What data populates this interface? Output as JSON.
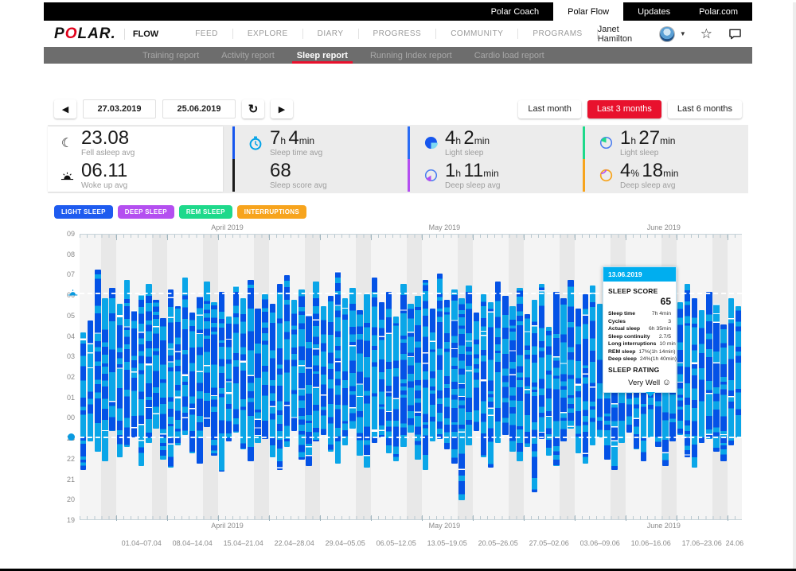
{
  "topbar": {
    "tabs": [
      {
        "label": "Polar Coach",
        "active": false
      },
      {
        "label": "Polar Flow",
        "active": true
      },
      {
        "label": "Updates",
        "active": false
      },
      {
        "label": "Polar.com",
        "active": false
      }
    ]
  },
  "nav": {
    "brand_p": "P",
    "brand_o": "O",
    "brand_lar": "LAR",
    "brand_dot": ".",
    "product": "FLOW",
    "items": [
      "FEED",
      "EXPLORE",
      "DIARY",
      "PROGRESS",
      "COMMUNITY",
      "PROGRAMS"
    ],
    "user": "Janet Hamilton"
  },
  "subnav": {
    "items": [
      {
        "label": "Training report",
        "active": false
      },
      {
        "label": "Activity report",
        "active": false
      },
      {
        "label": "Sleep report",
        "active": true
      },
      {
        "label": "Running Index report",
        "active": false
      },
      {
        "label": "Cardio load report",
        "active": false
      }
    ]
  },
  "controls": {
    "date_from": "27.03.2019",
    "date_to": "25.06.2019",
    "prev": "◀",
    "next": "▶",
    "refresh": "↻",
    "ranges": [
      {
        "label": "Last month",
        "active": false
      },
      {
        "label": "Last 3 months",
        "active": true
      },
      {
        "label": "Last 6 months",
        "active": false
      }
    ]
  },
  "stats": [
    {
      "icon": "moon-icon",
      "value": "23.08",
      "label": "Fell asleep avg",
      "divider": null
    },
    {
      "icon": "sunrise-icon",
      "value": "06.11",
      "label": "Woke up avg",
      "divider": null
    },
    {
      "icon": "stopwatch-icon",
      "value": "7h 4min",
      "label": "Sleep time avg",
      "divider": "#1656ee"
    },
    {
      "icon": null,
      "value": "68",
      "label": "Sleep score avg",
      "divider": "#1a1a1a"
    },
    {
      "icon": "pie-blue-icon",
      "value": "4h 2min",
      "label": "Light sleep",
      "divider": "#2a6cf5"
    },
    {
      "icon": "pie-purple-icon",
      "value": "1h 11min",
      "label": "Deep sleep avg",
      "divider": "#b44ef0"
    },
    {
      "icon": "pie-green-icon",
      "value": "1h 27min",
      "label": "Light sleep",
      "divider": "#1ed98b"
    },
    {
      "icon": "pie-orange-icon",
      "value": "4% 18min",
      "label": "Deep sleep avg",
      "divider": "#f7a41d"
    }
  ],
  "legend": [
    {
      "label": "LIGHT SLEEP",
      "color": "#1e5bef"
    },
    {
      "label": "DEEP SLEEP",
      "color": "#b44ff0"
    },
    {
      "label": "REM SLEEP",
      "color": "#1ed98b"
    },
    {
      "label": "INTERRUPTIONS",
      "color": "#f7a41d"
    }
  ],
  "chart_data": {
    "type": "bar",
    "subtype": "vertical-time-range",
    "y_ticks": [
      "09",
      "08",
      "07",
      "06",
      "05",
      "04",
      "03",
      "02",
      "01",
      "00",
      "23",
      "22",
      "21",
      "20",
      "19"
    ],
    "y_hours": [
      9,
      8,
      7,
      6,
      5,
      4,
      3,
      2,
      1,
      0,
      23,
      22,
      21,
      20,
      19
    ],
    "x_weeks": [
      "01.04–07.04",
      "08.04–14.04",
      "15.04–21.04",
      "22.04–28.04",
      "29.04–05.05",
      "06.05–12.05",
      "13.05–19.05",
      "20.05–26.05",
      "27.05–02.06",
      "03.06–09.06",
      "10.06–16.06",
      "17.06–23.06",
      "24.06"
    ],
    "months": [
      {
        "label": "April 2019",
        "pos": 0.223
      },
      {
        "label": "May 2019",
        "pos": 0.551
      },
      {
        "label": "June 2019",
        "pos": 0.882
      }
    ],
    "start_date": "27.03.2019",
    "end_date": "25.06.2019",
    "avg_fall_asleep_label": "23.08",
    "avg_wake_up_label": "06.11",
    "avg_fall_asleep_hour": 23.13,
    "avg_wake_up_hour": 6.18,
    "first_saturday_index": 3,
    "first_week_start_index": 5,
    "colors": {
      "light": "#0aa6e8",
      "deep": "#0452e6",
      "bg": "#f4f4f4",
      "weekend": "#e8e8e8"
    },
    "days": [
      [
        21.5,
        4.2
      ],
      [
        22.9,
        4.8
      ],
      [
        22.4,
        7.3
      ],
      [
        21.9,
        5.9
      ],
      [
        23.4,
        6.4
      ],
      [
        22.1,
        5.6
      ],
      [
        22.6,
        6.8
      ],
      [
        23.1,
        5.3
      ],
      [
        21.7,
        6.1
      ],
      [
        22.8,
        6.6
      ],
      [
        23.5,
        5.8
      ],
      [
        22.0,
        4.9
      ],
      [
        21.6,
        6.3
      ],
      [
        22.7,
        5.5
      ],
      [
        23.2,
        6.9
      ],
      [
        22.3,
        5.2
      ],
      [
        21.8,
        6.0
      ],
      [
        23.6,
        6.7
      ],
      [
        22.2,
        5.7
      ],
      [
        21.4,
        6.2
      ],
      [
        22.9,
        5.0
      ],
      [
        23.3,
        6.5
      ],
      [
        22.5,
        5.9
      ],
      [
        21.9,
        6.8
      ],
      [
        22.8,
        5.4
      ],
      [
        23.0,
        6.1
      ],
      [
        22.1,
        5.6
      ],
      [
        21.5,
        6.6
      ],
      [
        22.6,
        7.0
      ],
      [
        23.4,
        5.8
      ],
      [
        22.0,
        6.3
      ],
      [
        21.7,
        5.1
      ],
      [
        22.9,
        6.7
      ],
      [
        23.2,
        5.5
      ],
      [
        22.4,
        6.0
      ],
      [
        21.8,
        7.2
      ],
      [
        22.7,
        5.9
      ],
      [
        23.5,
        6.4
      ],
      [
        22.2,
        5.3
      ],
      [
        21.6,
        6.1
      ],
      [
        22.8,
        6.9
      ],
      [
        23.1,
        5.7
      ],
      [
        22.3,
        6.2
      ],
      [
        21.9,
        5.0
      ],
      [
        22.6,
        6.6
      ],
      [
        23.3,
        5.6
      ],
      [
        22.0,
        6.0
      ],
      [
        21.5,
        6.8
      ],
      [
        22.9,
        5.4
      ],
      [
        23.0,
        7.1
      ],
      [
        22.5,
        5.8
      ],
      [
        21.8,
        6.3
      ],
      [
        20.0,
        5.9
      ],
      [
        22.7,
        6.5
      ],
      [
        23.4,
        5.2
      ],
      [
        22.1,
        6.1
      ],
      [
        21.6,
        5.7
      ],
      [
        22.8,
        6.7
      ],
      [
        23.2,
        6.0
      ],
      [
        22.4,
        5.5
      ],
      [
        21.9,
        6.4
      ],
      [
        22.6,
        5.1
      ],
      [
        20.4,
        5.8
      ],
      [
        23.0,
        6.6
      ],
      [
        22.2,
        4.5
      ],
      [
        21.7,
        6.2
      ],
      [
        22.9,
        5.9
      ],
      [
        23.5,
        6.8
      ],
      [
        22.3,
        5.4
      ],
      [
        21.8,
        6.1
      ],
      [
        22.7,
        6.5
      ],
      [
        23.1,
        5.6
      ],
      [
        22.0,
        6.0
      ],
      [
        21.5,
        5.2
      ],
      [
        22.8,
        6.7
      ],
      [
        23.3,
        6.2
      ],
      [
        22.5,
        5.8
      ],
      [
        21.9,
        6.9
      ],
      [
        23.1,
        6.2
      ],
      [
        22.6,
        5.5
      ],
      [
        21.7,
        6.3
      ],
      [
        22.9,
        6.0
      ],
      [
        23.2,
        5.7
      ],
      [
        22.1,
        6.6
      ],
      [
        21.6,
        5.9
      ],
      [
        22.8,
        5.3
      ],
      [
        23.0,
        6.2
      ],
      [
        22.4,
        5.6
      ],
      [
        21.9,
        4.6
      ],
      [
        22.7,
        5.9
      ],
      [
        23.1,
        5.5
      ]
    ]
  },
  "tooltip": {
    "date": "13.06.2019",
    "score_label": "SLEEP SCORE",
    "score": "65",
    "rows": [
      {
        "k": "Sleep time",
        "v": "7h 4min"
      },
      {
        "k": "Cycles",
        "v": "3"
      },
      {
        "k": "Actual sleep",
        "v": "6h 35min"
      },
      {
        "k": "Sleep continuity",
        "v": "2.7/5"
      },
      {
        "k": "Long interruptions",
        "v": "10 min"
      },
      {
        "k": "REM sleep",
        "v": "17%(1h 14min)"
      },
      {
        "k": "Deep sleep",
        "v": "24%(1h 40min)"
      }
    ],
    "rating_label": "SLEEP RATING",
    "rating_value": "Very Well",
    "smiley": "☺"
  }
}
